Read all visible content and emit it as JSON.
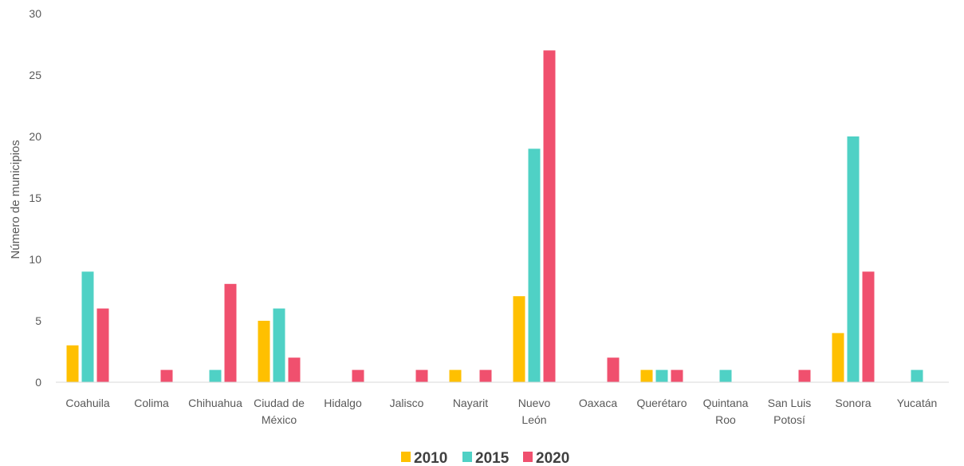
{
  "chart_data": {
    "type": "bar",
    "ylabel": "Número de municipios",
    "ylim": [
      0,
      30
    ],
    "yticks": [
      "0",
      "5",
      "10",
      "15",
      "20",
      "25",
      "30"
    ],
    "grid": false,
    "legend_position": "bottom",
    "categories": [
      [
        "Coahuila"
      ],
      [
        "Colima"
      ],
      [
        "Chihuahua"
      ],
      [
        "Ciudad de",
        "México"
      ],
      [
        "Hidalgo"
      ],
      [
        "Jalisco"
      ],
      [
        "Nayarit"
      ],
      [
        "Nuevo",
        "León"
      ],
      [
        "Oaxaca"
      ],
      [
        "Querétaro"
      ],
      [
        "Quintana",
        "Roo"
      ],
      [
        "San Luis",
        "Potosí"
      ],
      [
        "Sonora"
      ],
      [
        "Yucatán"
      ]
    ],
    "series": [
      {
        "name": "2010",
        "color": "#FFC000",
        "values": [
          3,
          0,
          0,
          5,
          0,
          0,
          1,
          7,
          0,
          1,
          0,
          0,
          4,
          0
        ]
      },
      {
        "name": "2015",
        "color": "#4FD1C5",
        "values": [
          9,
          0,
          1,
          6,
          0,
          0,
          0,
          19,
          0,
          1,
          1,
          0,
          20,
          1
        ]
      },
      {
        "name": "2020",
        "color": "#F0506E",
        "values": [
          6,
          1,
          8,
          2,
          1,
          1,
          1,
          27,
          2,
          1,
          0,
          1,
          9,
          0
        ]
      }
    ]
  }
}
